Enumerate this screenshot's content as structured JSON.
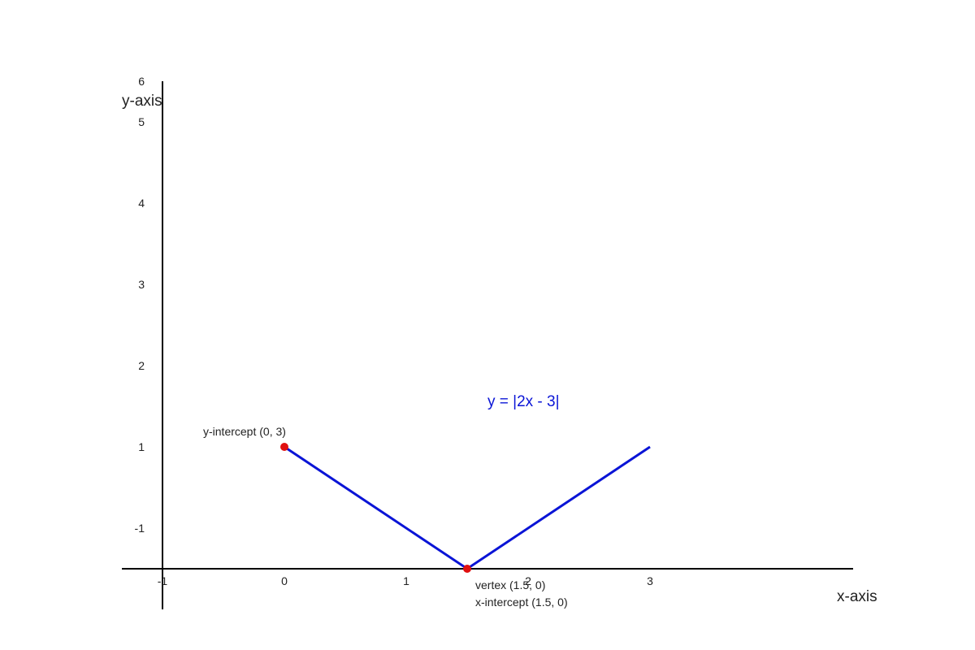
{
  "axes": {
    "x_label": "x-axis",
    "y_label": "y-axis",
    "x_ticks": [
      "-1",
      "0",
      "1",
      "2",
      "3"
    ],
    "y_ticks": [
      "6",
      "5",
      "4",
      "3",
      "2",
      "1",
      "-1"
    ]
  },
  "function_label": "y = |2x - 3|",
  "annotations": {
    "y_intercept": "y-intercept (0, 3)",
    "vertex": "vertex (1.5, 0)",
    "x_intercept": "x-intercept (1.5, 0)"
  }
}
